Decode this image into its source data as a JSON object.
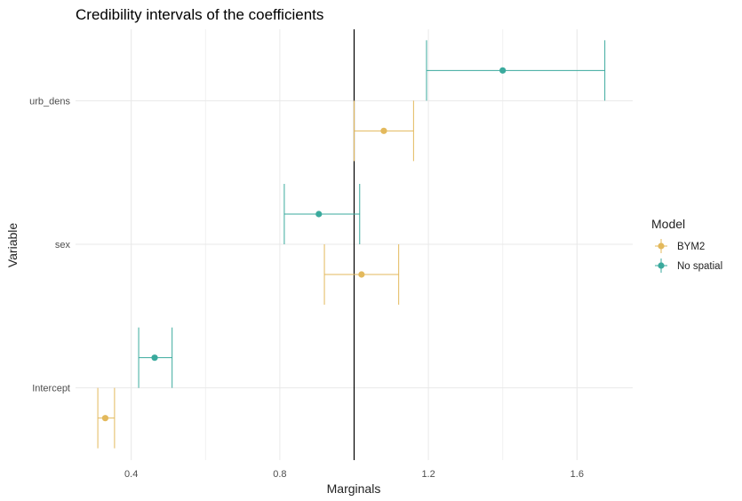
{
  "chart_data": {
    "type": "errorbar",
    "title": "Credibility intervals of the coefficients",
    "xlabel": "Marginals",
    "ylabel": "Variable",
    "xlim": [
      0.25,
      1.75
    ],
    "xticks": [
      0.4,
      0.8,
      1.2,
      1.6
    ],
    "xtick_labels": [
      "0.4",
      "0.8",
      "1.2",
      "1.6"
    ],
    "categories": [
      "urb_dens",
      "sex",
      "Intercept"
    ],
    "reference_line": 1.0,
    "grid": true,
    "legend": {
      "title": "Model",
      "position": "right"
    },
    "series": [
      {
        "name": "BYM2",
        "color": "#e3b95c",
        "points": [
          {
            "category": "urb_dens",
            "estimate": 1.08,
            "lower": 1.0,
            "upper": 1.16
          },
          {
            "category": "sex",
            "estimate": 1.02,
            "lower": 0.92,
            "upper": 1.12
          },
          {
            "category": "Intercept",
            "estimate": 0.33,
            "lower": 0.31,
            "upper": 0.355
          }
        ]
      },
      {
        "name": "No spatial",
        "color": "#3aaa9d",
        "points": [
          {
            "category": "urb_dens",
            "estimate": 1.4,
            "lower": 1.195,
            "upper": 1.675
          },
          {
            "category": "sex",
            "estimate": 0.905,
            "lower": 0.812,
            "upper": 1.015
          },
          {
            "category": "Intercept",
            "estimate": 0.463,
            "lower": 0.42,
            "upper": 0.51
          }
        ]
      }
    ]
  }
}
